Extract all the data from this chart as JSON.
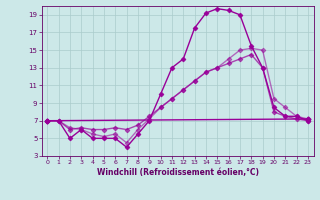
{
  "xlabel": "Windchill (Refroidissement éolien,°C)",
  "bg_color": "#cce8e8",
  "line_color": "#990099",
  "grid_color": "#aacccc",
  "tick_color": "#660066",
  "label_color": "#660066",
  "xlim": [
    -0.5,
    23.5
  ],
  "ylim": [
    3,
    20
  ],
  "yticks": [
    3,
    5,
    7,
    9,
    11,
    13,
    15,
    17,
    19
  ],
  "xticks": [
    0,
    1,
    2,
    3,
    4,
    5,
    6,
    7,
    8,
    9,
    10,
    11,
    12,
    13,
    14,
    15,
    16,
    17,
    18,
    19,
    20,
    21,
    22,
    23
  ],
  "line1_x": [
    0,
    1,
    2,
    3,
    4,
    5,
    6,
    7,
    8,
    9,
    10,
    11,
    12,
    13,
    14,
    15,
    16,
    17,
    18,
    19,
    20,
    21,
    22,
    23
  ],
  "line1_y": [
    7.0,
    7.0,
    5.0,
    6.0,
    5.0,
    5.0,
    5.0,
    4.0,
    5.5,
    7.0,
    10.0,
    13.0,
    14.0,
    17.5,
    19.2,
    19.7,
    19.5,
    19.0,
    15.5,
    13.0,
    8.5,
    7.5,
    7.5,
    7.0
  ],
  "line2_x": [
    0,
    23
  ],
  "line2_y": [
    7.0,
    7.2
  ],
  "line3_x": [
    0,
    1,
    2,
    3,
    4,
    5,
    6,
    7,
    8,
    9,
    10,
    11,
    12,
    13,
    14,
    15,
    16,
    17,
    18,
    19,
    20,
    21,
    22,
    23
  ],
  "line3_y": [
    7.0,
    7.0,
    6.0,
    6.2,
    6.0,
    6.0,
    6.2,
    6.0,
    6.5,
    7.5,
    8.5,
    9.5,
    10.5,
    11.5,
    12.5,
    13.0,
    13.5,
    14.0,
    14.5,
    13.0,
    8.0,
    7.5,
    7.2,
    7.0
  ],
  "line4_x": [
    0,
    1,
    2,
    3,
    4,
    5,
    6,
    7,
    8,
    9,
    10,
    11,
    12,
    13,
    14,
    15,
    16,
    17,
    18,
    19,
    20,
    21,
    22,
    23
  ],
  "line4_y": [
    7.0,
    7.0,
    6.2,
    6.0,
    5.5,
    5.2,
    5.5,
    4.5,
    6.0,
    7.2,
    8.5,
    9.5,
    10.5,
    11.5,
    12.5,
    13.0,
    14.0,
    15.0,
    15.2,
    15.0,
    9.5,
    8.5,
    7.5,
    7.2
  ],
  "marker": "D",
  "markersize": 2.5,
  "linewidth": 1.0
}
